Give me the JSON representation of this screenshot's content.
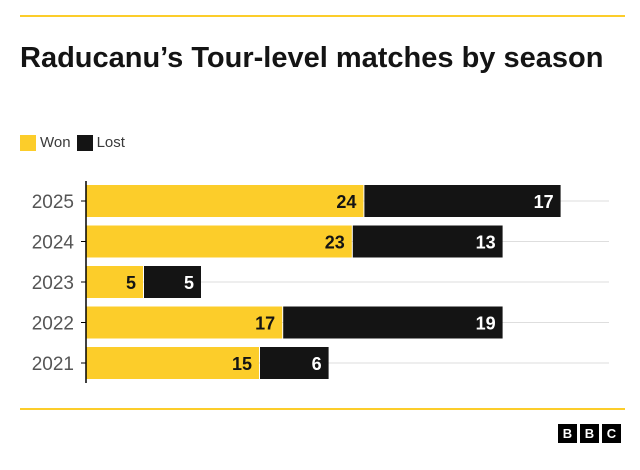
{
  "title": "Raducanu’s Tour-level matches by season",
  "colors": {
    "won": "#fccd2a",
    "lost": "#141414",
    "rule": "#fccd2a",
    "gridline": "#dedede",
    "axis": "#000000"
  },
  "legend": [
    {
      "label": "Won",
      "color": "#fccd2a"
    },
    {
      "label": "Lost",
      "color": "#141414"
    }
  ],
  "logo": [
    "B",
    "B",
    "C"
  ],
  "chart_data": {
    "type": "bar",
    "orientation": "horizontal",
    "stacked": true,
    "title": "Raducanu’s Tour-level matches by season",
    "categories": [
      "2025",
      "2024",
      "2023",
      "2022",
      "2021"
    ],
    "series": [
      {
        "name": "Won",
        "values": [
          24,
          23,
          5,
          17,
          15
        ]
      },
      {
        "name": "Lost",
        "values": [
          17,
          13,
          5,
          19,
          6
        ]
      }
    ],
    "grid": true,
    "legend_position": "top-left",
    "xlim": [
      0,
      45
    ]
  }
}
